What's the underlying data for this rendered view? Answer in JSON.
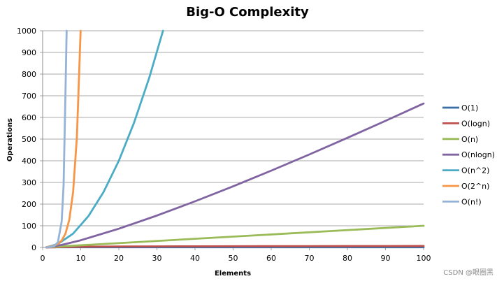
{
  "chart_data": {
    "type": "line",
    "title": "Big-O Complexity",
    "xlabel": "Elements",
    "ylabel": "Operations",
    "xlim": [
      0,
      100
    ],
    "ylim": [
      0,
      1000
    ],
    "xticks": [
      0,
      10,
      20,
      30,
      40,
      50,
      60,
      70,
      80,
      90,
      100
    ],
    "yticks": [
      0,
      100,
      200,
      300,
      400,
      500,
      600,
      700,
      800,
      900,
      1000
    ],
    "grid": "horizontal",
    "legend_position": "right",
    "series": [
      {
        "name": "O(1)",
        "color": "#3A6EA5",
        "x": [
          1,
          100
        ],
        "y": [
          1,
          1
        ]
      },
      {
        "name": "O(logn)",
        "color": "#C0504D",
        "x": [
          1,
          10,
          20,
          30,
          40,
          50,
          60,
          70,
          80,
          90,
          100
        ],
        "y": [
          0,
          3.32,
          4.32,
          4.91,
          5.32,
          5.64,
          5.91,
          6.13,
          6.32,
          6.49,
          6.64
        ]
      },
      {
        "name": "O(n)",
        "color": "#9BBB59",
        "x": [
          1,
          100
        ],
        "y": [
          1,
          100
        ]
      },
      {
        "name": "O(nlogn)",
        "color": "#8064A2",
        "x": [
          1,
          5,
          10,
          20,
          30,
          40,
          50,
          60,
          70,
          80,
          90,
          100
        ],
        "y": [
          0,
          11.6,
          33.2,
          86.4,
          147.2,
          212.9,
          282.2,
          354.4,
          429.1,
          505.8,
          584.3,
          664.4
        ]
      },
      {
        "name": "O(n^2)",
        "color": "#4BACC6",
        "x": [
          1,
          4,
          8,
          12,
          16,
          20,
          24,
          28,
          31.6
        ],
        "y": [
          1,
          16,
          64,
          144,
          256,
          400,
          576,
          784,
          1000
        ]
      },
      {
        "name": "O(2^n)",
        "color": "#F79646",
        "x": [
          1,
          2,
          3,
          4,
          5,
          6,
          7,
          8,
          9,
          9.97
        ],
        "y": [
          2,
          4,
          8,
          16,
          32,
          64,
          128,
          256,
          512,
          1000
        ]
      },
      {
        "name": "O(n!)",
        "color": "#95B3D7",
        "x": [
          1,
          2,
          3,
          4,
          5,
          5.5,
          6,
          6.3
        ],
        "y": [
          1,
          2,
          6,
          24,
          120,
          287,
          720,
          1000
        ]
      }
    ]
  },
  "watermark": "CSDN @眼圈黑"
}
